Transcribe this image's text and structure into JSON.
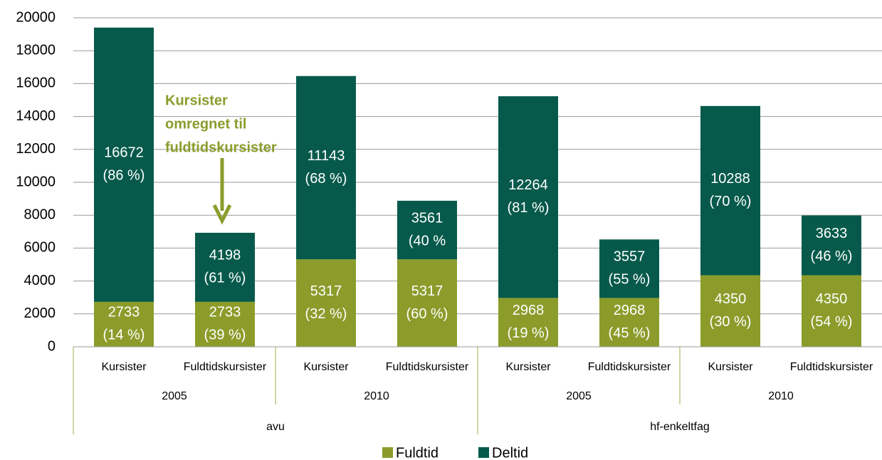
{
  "chart_data": {
    "type": "stacked_bar",
    "categories": [
      "Kursister",
      "Fuldtidskursister",
      "Kursister",
      "Fuldtidskursister",
      "Kursister",
      "Fuldtidskursister",
      "Kursister",
      "Fuldtidskursister"
    ],
    "category_levels": [
      [
        "2005",
        "2010",
        "2005",
        "2010"
      ],
      [
        "avu",
        "hf-enkeltfag"
      ]
    ],
    "series": [
      {
        "name": "Fuldtid",
        "color": "#8c9c2b",
        "values": [
          2733,
          2733,
          5317,
          5317,
          2968,
          2968,
          4350,
          4350
        ],
        "percent_labels": [
          "(14 %)",
          "(39 %)",
          "(32 %)",
          "(60 %)",
          "(19 %)",
          "(45 %)",
          "(30 %)",
          "(54 %)"
        ]
      },
      {
        "name": "Deltid",
        "color": "#075a4b",
        "values": [
          16672,
          4198,
          11143,
          3561,
          12264,
          3557,
          10288,
          3633
        ],
        "percent_labels": [
          "(86 %)",
          "(61 %)",
          "(68 %)",
          "(40 %",
          "(81 %)",
          "(55 %)",
          "(70 %)",
          "(46 %)"
        ]
      }
    ],
    "ylim": [
      0,
      20000
    ],
    "yticks": [
      0,
      2000,
      4000,
      6000,
      8000,
      10000,
      12000,
      14000,
      16000,
      18000,
      20000
    ],
    "grid": true,
    "annotation": [
      "Kursister",
      "omregnet til",
      "fuldtidskursister"
    ]
  }
}
